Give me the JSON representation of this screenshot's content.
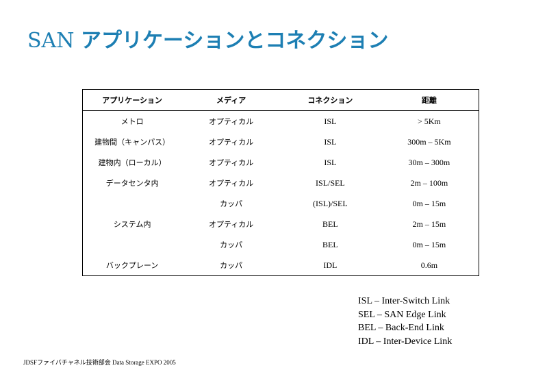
{
  "title": {
    "prefix": "SAN",
    "main": "アプリケーションとコネクション"
  },
  "table": {
    "headers": [
      "アプリケーション",
      "メディア",
      "コネクション",
      "距離"
    ],
    "rows": [
      {
        "app": "メトロ",
        "media": "オプティカル",
        "conn": "ISL",
        "dist": "> 5Km"
      },
      {
        "app": "建物間（キャンパス）",
        "media": "オプティカル",
        "conn": "ISL",
        "dist": "300m – 5Km"
      },
      {
        "app": "建物内（ローカル）",
        "media": "オプティカル",
        "conn": "ISL",
        "dist": "30m – 300m"
      },
      {
        "app": "データセンタ内",
        "media": "オプティカル",
        "conn": "ISL/SEL",
        "dist": "2m – 100m"
      },
      {
        "app": "",
        "media": "カッパ",
        "conn": "(ISL)/SEL",
        "dist": "0m – 15m"
      },
      {
        "app": "システム内",
        "media": "オプティカル",
        "conn": "BEL",
        "dist": "2m – 15m"
      },
      {
        "app": "",
        "media": "カッパ",
        "conn": "BEL",
        "dist": "0m – 15m"
      },
      {
        "app": "バックプレーン",
        "media": "カッパ",
        "conn": "IDL",
        "dist": "0.6m"
      }
    ]
  },
  "legend": [
    "ISL – Inter-Switch Link",
    "SEL – SAN Edge Link",
    "BEL – Back-End Link",
    "IDL – Inter-Device Link"
  ],
  "footer": "JDSFファイバチャネル技術部会 Data Storage EXPO 2005"
}
